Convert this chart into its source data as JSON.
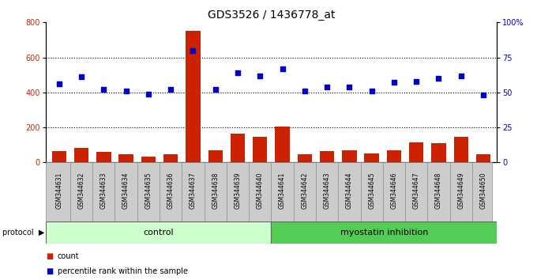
{
  "title": "GDS3526 / 1436778_at",
  "samples": [
    "GSM344631",
    "GSM344632",
    "GSM344633",
    "GSM344634",
    "GSM344635",
    "GSM344636",
    "GSM344637",
    "GSM344638",
    "GSM344639",
    "GSM344640",
    "GSM344641",
    "GSM344642",
    "GSM344643",
    "GSM344644",
    "GSM344645",
    "GSM344646",
    "GSM344647",
    "GSM344648",
    "GSM344649",
    "GSM344650"
  ],
  "counts": [
    65,
    85,
    60,
    48,
    35,
    45,
    750,
    70,
    165,
    148,
    205,
    45,
    65,
    70,
    50,
    70,
    115,
    108,
    148,
    45
  ],
  "percentile": [
    56,
    61,
    52,
    51,
    49,
    52,
    80,
    52,
    64,
    62,
    67,
    51,
    54,
    54,
    51,
    57,
    58,
    60,
    62,
    48
  ],
  "control_count": 10,
  "myostatin_count": 10,
  "ylim_left": [
    0,
    800
  ],
  "ylim_right": [
    0,
    100
  ],
  "yticks_left": [
    0,
    200,
    400,
    600,
    800
  ],
  "yticks_right": [
    0,
    25,
    50,
    75,
    100
  ],
  "ytick_labels_right": [
    "0",
    "25",
    "50",
    "75",
    "100%"
  ],
  "bar_color": "#cc2200",
  "scatter_color": "#0000cc",
  "control_bg": "#ccffcc",
  "myostatin_bg": "#55cc55",
  "xticklabel_bg": "#cccccc",
  "title_fontsize": 10,
  "tick_fontsize": 7,
  "label_fontsize": 5.5,
  "proto_fontsize": 8,
  "legend_fontsize": 7,
  "bar_width": 0.65,
  "scatter_size": 18
}
